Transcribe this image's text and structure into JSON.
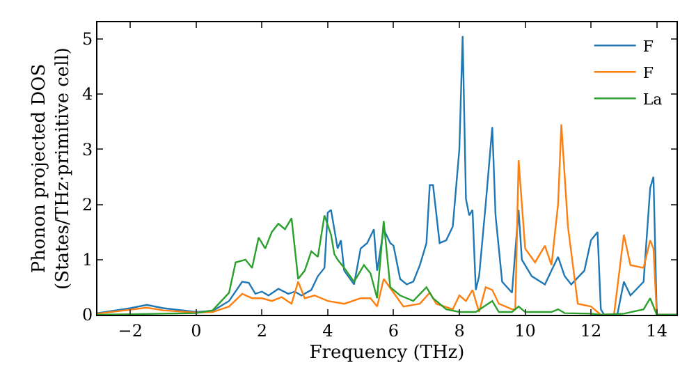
{
  "chart_data": {
    "type": "line",
    "xlabel": "Frequency (THz)",
    "ylabel": "Phonon projected DOS\n(States/THz·primitive cell)",
    "xlim": [
      -3,
      14.6
    ],
    "ylim": [
      0,
      5.3
    ],
    "xticks": [
      -2,
      0,
      2,
      4,
      6,
      8,
      10,
      12,
      14
    ],
    "yticks": [
      0,
      1,
      2,
      3,
      4,
      5
    ],
    "legend": "top right",
    "marker": "none",
    "line_style": "solid",
    "series": [
      {
        "name": "F",
        "color": "#1f77b4",
        "x": [
          -3,
          -2,
          -1.5,
          -1,
          0,
          0.5,
          1,
          1.4,
          1.6,
          1.8,
          2,
          2.2,
          2.5,
          2.8,
          3,
          3.2,
          3.5,
          3.7,
          3.9,
          4,
          4.1,
          4.3,
          4.4,
          4.5,
          4.8,
          5,
          5.2,
          5.4,
          5.5,
          5.7,
          5.9,
          6,
          6.2,
          6.4,
          6.6,
          6.8,
          7,
          7.1,
          7.2,
          7.4,
          7.6,
          7.8,
          8.0,
          8.1,
          8.2,
          8.3,
          8.4,
          8.5,
          8.6,
          8.8,
          9,
          9.1,
          9.3,
          9.6,
          9.8,
          9.9,
          10.2,
          10.6,
          10.8,
          11,
          11.2,
          11.4,
          11.8,
          12,
          12.2,
          12.3,
          12.4,
          12.8,
          13,
          13.2,
          13.6,
          13.8,
          13.9,
          14,
          14.6
        ],
        "values": [
          0.03,
          0.12,
          0.18,
          0.12,
          0.05,
          0.07,
          0.25,
          0.6,
          0.58,
          0.38,
          0.42,
          0.35,
          0.47,
          0.38,
          0.42,
          0.35,
          0.45,
          0.7,
          0.85,
          1.85,
          1.9,
          1.2,
          1.35,
          0.8,
          0.55,
          1.2,
          1.3,
          1.55,
          0.8,
          1.55,
          1.3,
          1.25,
          0.65,
          0.55,
          0.6,
          0.9,
          1.3,
          2.35,
          2.35,
          1.3,
          1.35,
          1.6,
          3.0,
          5.05,
          2.1,
          1.8,
          1.9,
          0.45,
          0.7,
          2.0,
          3.4,
          1.8,
          0.6,
          0.4,
          1.9,
          1.0,
          0.7,
          0.55,
          0.8,
          1.05,
          0.7,
          0.55,
          0.8,
          1.35,
          1.5,
          0.1,
          0,
          0,
          0.6,
          0.35,
          0.6,
          2.3,
          2.5,
          0,
          0
        ]
      },
      {
        "name": "F",
        "color": "#ff7f0e",
        "x": [
          -3,
          -1.5,
          -1,
          0,
          0.5,
          1,
          1.4,
          1.7,
          2,
          2.3,
          2.6,
          2.9,
          3.1,
          3.3,
          3.6,
          4,
          4.5,
          5,
          5.3,
          5.5,
          5.7,
          6,
          6.3,
          6.8,
          7.1,
          7.3,
          7.8,
          8,
          8.2,
          8.4,
          8.6,
          8.8,
          9,
          9.2,
          9.6,
          9.7,
          9.8,
          10,
          10.3,
          10.6,
          10.8,
          11,
          11.1,
          11.3,
          11.6,
          12,
          12.3,
          12.7,
          13,
          13.2,
          13.6,
          13.8,
          13.9,
          14,
          14.6
        ],
        "values": [
          0.02,
          0.13,
          0.08,
          0.04,
          0.05,
          0.15,
          0.38,
          0.3,
          0.3,
          0.25,
          0.32,
          0.2,
          0.6,
          0.3,
          0.35,
          0.25,
          0.2,
          0.3,
          0.3,
          0.15,
          0.65,
          0.4,
          0.15,
          0.2,
          0.4,
          0.2,
          0.1,
          0.35,
          0.25,
          0.45,
          0.05,
          0.5,
          0.45,
          0.2,
          0.1,
          0.1,
          2.8,
          1.2,
          0.95,
          1.25,
          0.9,
          2.0,
          3.45,
          1.6,
          0.2,
          0.15,
          0,
          0,
          1.45,
          0.9,
          0.85,
          1.35,
          1.2,
          0,
          0
        ]
      },
      {
        "name": "La",
        "color": "#2ca02c",
        "x": [
          -3,
          -1,
          0,
          0.5,
          1,
          1.2,
          1.5,
          1.7,
          1.9,
          2.1,
          2.3,
          2.5,
          2.7,
          2.9,
          3.1,
          3.3,
          3.5,
          3.7,
          3.9,
          4.1,
          4.2,
          4.3,
          4.5,
          4.8,
          5.1,
          5.3,
          5.5,
          5.7,
          5.9,
          6.2,
          6.6,
          7.0,
          7.2,
          7.6,
          8,
          8.5,
          9,
          9.2,
          9.6,
          9.8,
          10,
          10.8,
          11,
          11.2,
          12,
          12.3,
          13,
          13.6,
          13.8,
          14,
          14.6
        ],
        "values": [
          0,
          0.02,
          0.03,
          0.08,
          0.4,
          0.95,
          1.0,
          0.85,
          1.4,
          1.2,
          1.5,
          1.65,
          1.55,
          1.75,
          0.65,
          0.8,
          1.15,
          1.05,
          1.8,
          1.45,
          1.1,
          1.0,
          0.85,
          0.6,
          0.9,
          0.75,
          0.3,
          1.7,
          0.5,
          0.35,
          0.25,
          0.5,
          0.3,
          0.1,
          0.05,
          0.05,
          0.25,
          0.05,
          0.05,
          0.15,
          0.05,
          0.05,
          0.1,
          0.03,
          0.02,
          0,
          0.02,
          0.1,
          0.3,
          0,
          0
        ]
      }
    ]
  }
}
